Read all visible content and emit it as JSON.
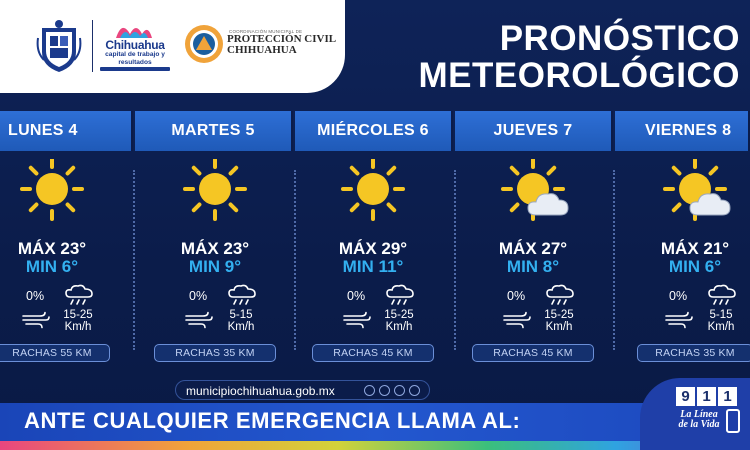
{
  "header": {
    "city_logo_name": "Chihuahua",
    "city_logo_sub": "capital de trabajo y resultados",
    "pc_small": "COORDINACIÓN MUNICIPAL DE",
    "pc_line1": "PROTECCIÓN CIVIL",
    "pc_line2": "CHIHUAHUA",
    "title_line1": "PRONÓSTICO",
    "title_line2": "METEOROLÓGICO"
  },
  "days": [
    {
      "name": "LUNES 4",
      "icon": "sun-icon",
      "max": "MÁX 23°",
      "min": "MIN 6°",
      "precip": "0%",
      "wind": "15-25",
      "wind_unit": "Km/h",
      "gusts": "RACHAS 55 KM"
    },
    {
      "name": "MARTES 5",
      "icon": "sun-icon",
      "max": "MÁX 23°",
      "min": "MIN 9°",
      "precip": "0%",
      "wind": "5-15",
      "wind_unit": "Km/h",
      "gusts": "RACHAS 35 KM"
    },
    {
      "name": "MIÉRCOLES 6",
      "icon": "sun-icon",
      "max": "MÁX 29°",
      "min": "MIN 11°",
      "precip": "0%",
      "wind": "15-25",
      "wind_unit": "Km/h",
      "gusts": "RACHAS 45 KM"
    },
    {
      "name": "JUEVES 7",
      "icon": "sun-cloud-icon",
      "max": "MÁX 27°",
      "min": "MIN 8°",
      "precip": "0%",
      "wind": "15-25",
      "wind_unit": "Km/h",
      "gusts": "RACHAS 45 KM"
    },
    {
      "name": "VIERNES 8",
      "icon": "sun-cloud-icon",
      "max": "MÁX 21°",
      "min": "MIN 6°",
      "precip": "0%",
      "wind": "5-15",
      "wind_unit": "Km/h",
      "gusts": "RACHAS 35 KM"
    }
  ],
  "footer": {
    "url": "municipiochihuahua.gob.mx",
    "social_icons": [
      "x-icon",
      "facebook-icon",
      "instagram-icon",
      "tiktok-icon"
    ],
    "emergency_text": "ANTE CUALQUIER EMERGENCIA LLAMA AL:",
    "emergency_number": [
      "9",
      "1",
      "1"
    ],
    "linea_line1": "La Línea",
    "linea_line2": "de la Vida"
  },
  "colors": {
    "background": "#0d1f4f",
    "day_header": "#2e6fd6",
    "min_temp": "#33b0f0",
    "sun": "#f5c624"
  }
}
